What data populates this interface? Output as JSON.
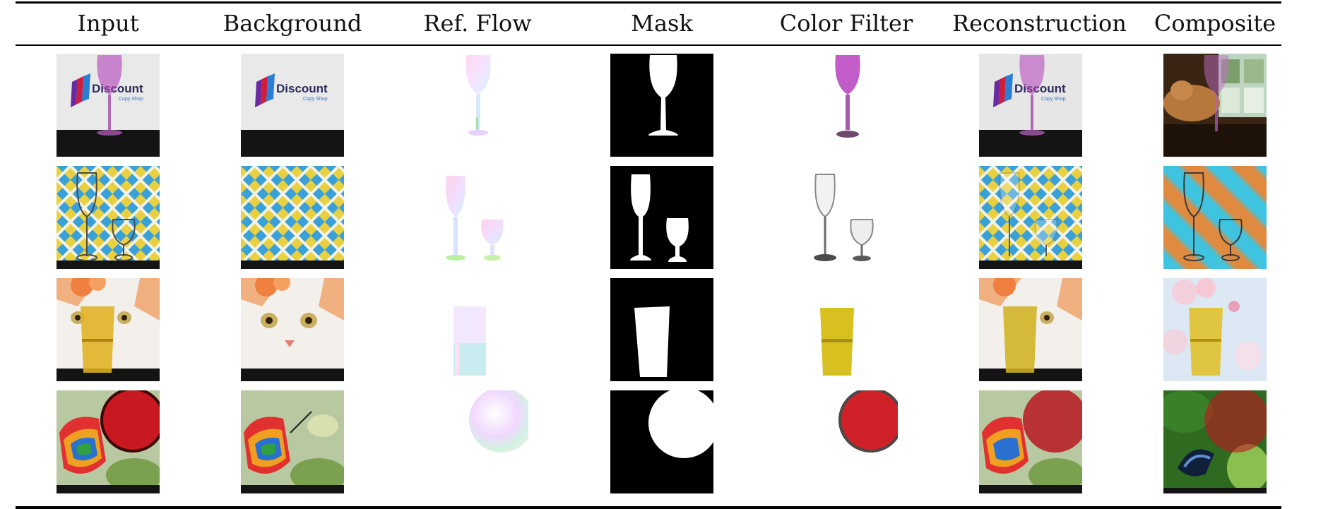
{
  "table": {
    "headers": [
      "Input",
      "Background",
      "Ref. Flow",
      "Mask",
      "Color Filter",
      "Reconstruction",
      "Composite"
    ]
  },
  "logo": {
    "brand": "Discount",
    "tagline": "Copy Shop"
  },
  "rows": [
    {
      "scene": "wine-glass-logo"
    },
    {
      "scene": "two-glasses-checker"
    },
    {
      "scene": "cat-yellow-glass"
    },
    {
      "scene": "butterfly-red-disc"
    }
  ],
  "colors": {
    "rule": "#000000",
    "mask_background": "#000000",
    "mask_foreground": "#ffffff"
  }
}
